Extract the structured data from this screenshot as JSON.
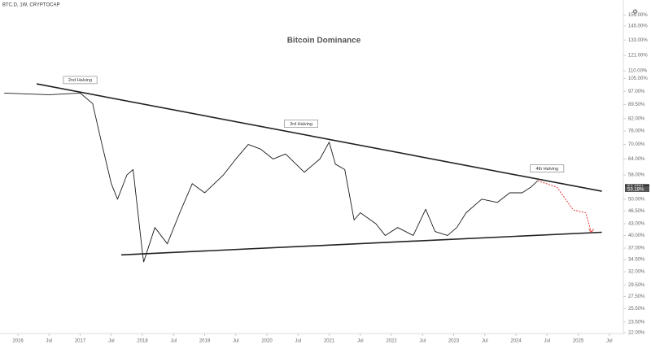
{
  "chart_data": {
    "type": "line",
    "header": "BTC.D, 1W, CRYPTOCAP",
    "title": "Bitcoin Dominance",
    "log_scale": true,
    "legend": false,
    "x": [
      2015.78,
      2016.5,
      2017.0,
      2017.2,
      2017.35,
      2017.5,
      2017.6,
      2017.75,
      2017.85,
      2018.0,
      2018.02,
      2018.2,
      2018.4,
      2018.6,
      2018.8,
      2019.0,
      2019.3,
      2019.5,
      2019.7,
      2019.9,
      2020.1,
      2020.3,
      2020.6,
      2020.85,
      2021.0,
      2021.1,
      2021.25,
      2021.4,
      2021.5,
      2021.75,
      2021.9,
      2022.1,
      2022.35,
      2022.55,
      2022.7,
      2022.9,
      2023.05,
      2023.2,
      2023.45,
      2023.7,
      2023.9,
      2024.1,
      2024.25,
      2024.35
    ],
    "series": [
      {
        "color": "#1a1a1a",
        "values": [
          96,
          95,
          96,
          90,
          70,
          55,
          50,
          58,
          60,
          36,
          34,
          42,
          38,
          46,
          55,
          52,
          58,
          64,
          70,
          68,
          64,
          66,
          59,
          64,
          71,
          62,
          60,
          44,
          46,
          43,
          40,
          42,
          40,
          47,
          41,
          40,
          42,
          46,
          50,
          49,
          52,
          52,
          54,
          56
        ]
      }
    ],
    "trendlines": [
      {
        "color": "#222222",
        "x": [
          2016.3,
          2025.38
        ],
        "values": [
          101.6,
          52.5
        ]
      },
      {
        "color": "#222222",
        "x": [
          2017.66,
          2025.38
        ],
        "values": [
          35.5,
          40.8
        ]
      }
    ],
    "projection": {
      "color": "#e53935",
      "x": [
        2024.35,
        2024.66,
        2024.92,
        2025.12,
        2025.21
      ],
      "values": [
        56,
        53.8,
        46.8,
        46,
        40.8
      ]
    },
    "annotations": [
      {
        "text": "2nd Halving",
        "x": 2017.0,
        "y": 104
      },
      {
        "text": "3rd Halving",
        "x": 2020.55,
        "y": 79.5
      },
      {
        "text": "4th Halving",
        "x": 2024.5,
        "y": 60.4
      }
    ],
    "last_value_labels": [
      {
        "value": 53.9,
        "label": "53.90%"
      },
      {
        "value": 53.18,
        "label": "53.18%"
      }
    ],
    "xlim": [
      2015.712,
      2025.725
    ],
    "xticks": [
      {
        "value": 2016,
        "label": "2016"
      },
      {
        "value": 2016.5,
        "label": "Jul"
      },
      {
        "value": 2017,
        "label": "2017"
      },
      {
        "value": 2017.5,
        "label": "Jul"
      },
      {
        "value": 2018,
        "label": "2018"
      },
      {
        "value": 2018.5,
        "label": "Jul"
      },
      {
        "value": 2019,
        "label": "2019"
      },
      {
        "value": 2019.5,
        "label": "Jul"
      },
      {
        "value": 2020,
        "label": "2020"
      },
      {
        "value": 2020.5,
        "label": "Jul"
      },
      {
        "value": 2021,
        "label": "2021"
      },
      {
        "value": 2021.5,
        "label": "Jul"
      },
      {
        "value": 2022,
        "label": "2022"
      },
      {
        "value": 2022.5,
        "label": "Jul"
      },
      {
        "value": 2023,
        "label": "2023"
      },
      {
        "value": 2023.5,
        "label": "Jul"
      },
      {
        "value": 2024,
        "label": "2024"
      },
      {
        "value": 2024.5,
        "label": "Jul"
      },
      {
        "value": 2025,
        "label": "2025"
      },
      {
        "value": 2025.5,
        "label": "Jul"
      }
    ],
    "ylim": [
      21.89,
      170.1
    ],
    "yticks": [
      {
        "value": 155,
        "label": "155.00%"
      },
      {
        "value": 145,
        "label": "145.00%"
      },
      {
        "value": 133,
        "label": "133.00%"
      },
      {
        "value": 121,
        "label": "121.00%"
      },
      {
        "value": 110,
        "label": "110.00%"
      },
      {
        "value": 105,
        "label": "105.00%"
      },
      {
        "value": 97,
        "label": "97.00%"
      },
      {
        "value": 89.5,
        "label": "89.50%"
      },
      {
        "value": 82,
        "label": "82.00%"
      },
      {
        "value": 76,
        "label": "76.00%"
      },
      {
        "value": 70,
        "label": "70.00%"
      },
      {
        "value": 64,
        "label": "64.00%"
      },
      {
        "value": 58,
        "label": "58.00%"
      },
      {
        "value": 50,
        "label": "50.00%"
      },
      {
        "value": 46.5,
        "label": "46.50%"
      },
      {
        "value": 43,
        "label": "43.00%"
      },
      {
        "value": 40,
        "label": "40.00%"
      },
      {
        "value": 37,
        "label": "37.00%"
      },
      {
        "value": 34.5,
        "label": "34.50%"
      },
      {
        "value": 32,
        "label": "32.00%"
      },
      {
        "value": 29.5,
        "label": "29.50%"
      },
      {
        "value": 27.5,
        "label": "27.50%"
      },
      {
        "value": 25.5,
        "label": "25.50%"
      },
      {
        "value": 23.5,
        "label": "23.50%"
      },
      {
        "value": 22,
        "label": "22.00%"
      }
    ],
    "grid": false
  }
}
